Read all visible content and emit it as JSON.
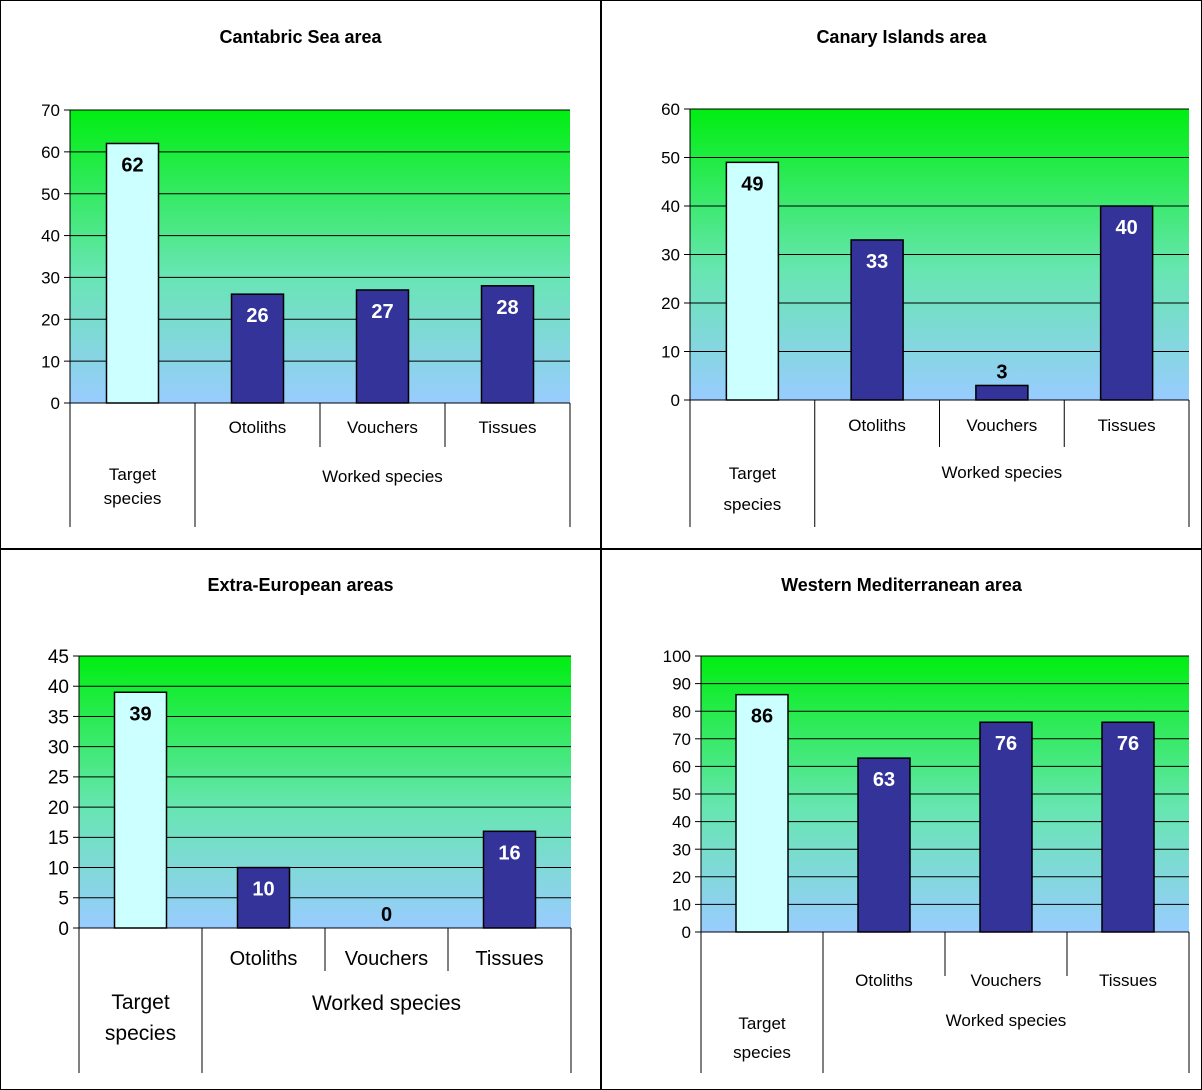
{
  "colors": {
    "gradient_top": "#00ee11",
    "gradient_mid": "#66e6b0",
    "gradient_bottom": "#99ccff",
    "target_bar": "#ccffff",
    "worked_bar": "#333399",
    "label_on_light": "#000000",
    "label_on_dark": "#ffffff"
  },
  "chart_data": [
    {
      "type": "bar",
      "title": "Cantabric Sea area",
      "ylim": [
        0,
        70
      ],
      "yticks": [
        0,
        10,
        20,
        30,
        40,
        50,
        60,
        70
      ],
      "grid": true,
      "categories": [
        {
          "label": "",
          "group": "Target species",
          "value": 62,
          "kind": "target"
        },
        {
          "label": "Otoliths",
          "group": "Worked species",
          "value": 26,
          "kind": "worked"
        },
        {
          "label": "Vouchers",
          "group": "Worked species",
          "value": 27,
          "kind": "worked"
        },
        {
          "label": "Tissues",
          "group": "Worked species",
          "value": 28,
          "kind": "worked"
        }
      ],
      "groups": [
        "Target species",
        "Worked species"
      ]
    },
    {
      "type": "bar",
      "title": "Canary Islands area",
      "ylim": [
        0,
        60
      ],
      "yticks": [
        0,
        10,
        20,
        30,
        40,
        50,
        60
      ],
      "grid": true,
      "categories": [
        {
          "label": "",
          "group": "Target species",
          "value": 49,
          "kind": "target"
        },
        {
          "label": "Otoliths",
          "group": "Worked species",
          "value": 33,
          "kind": "worked"
        },
        {
          "label": "Vouchers",
          "group": "Worked species",
          "value": 3,
          "kind": "worked"
        },
        {
          "label": "Tissues",
          "group": "Worked species",
          "value": 40,
          "kind": "worked"
        }
      ],
      "groups": [
        "Target species",
        "Worked species"
      ]
    },
    {
      "type": "bar",
      "title": "Extra-European areas",
      "ylim": [
        0,
        45
      ],
      "yticks": [
        0,
        5,
        10,
        15,
        20,
        25,
        30,
        35,
        40,
        45
      ],
      "grid": true,
      "categories": [
        {
          "label": "",
          "group": "Target species",
          "value": 39,
          "kind": "target"
        },
        {
          "label": "Otoliths",
          "group": "Worked species",
          "value": 10,
          "kind": "worked"
        },
        {
          "label": "Vouchers",
          "group": "Worked species",
          "value": 0,
          "kind": "worked"
        },
        {
          "label": "Tissues",
          "group": "Worked species",
          "value": 16,
          "kind": "worked"
        }
      ],
      "groups": [
        "Target species",
        "Worked species"
      ]
    },
    {
      "type": "bar",
      "title": "Western Mediterranean area",
      "ylim": [
        0,
        100
      ],
      "yticks": [
        0,
        10,
        20,
        30,
        40,
        50,
        60,
        70,
        80,
        90,
        100
      ],
      "grid": true,
      "categories": [
        {
          "label": "",
          "group": "Target species",
          "value": 86,
          "kind": "target"
        },
        {
          "label": "Otoliths",
          "group": "Worked species",
          "value": 63,
          "kind": "worked"
        },
        {
          "label": "Vouchers",
          "group": "Worked species",
          "value": 76,
          "kind": "worked"
        },
        {
          "label": "Tissues",
          "group": "Worked species",
          "value": 76,
          "kind": "worked"
        }
      ],
      "groups": [
        "Target species",
        "Worked species"
      ]
    }
  ]
}
